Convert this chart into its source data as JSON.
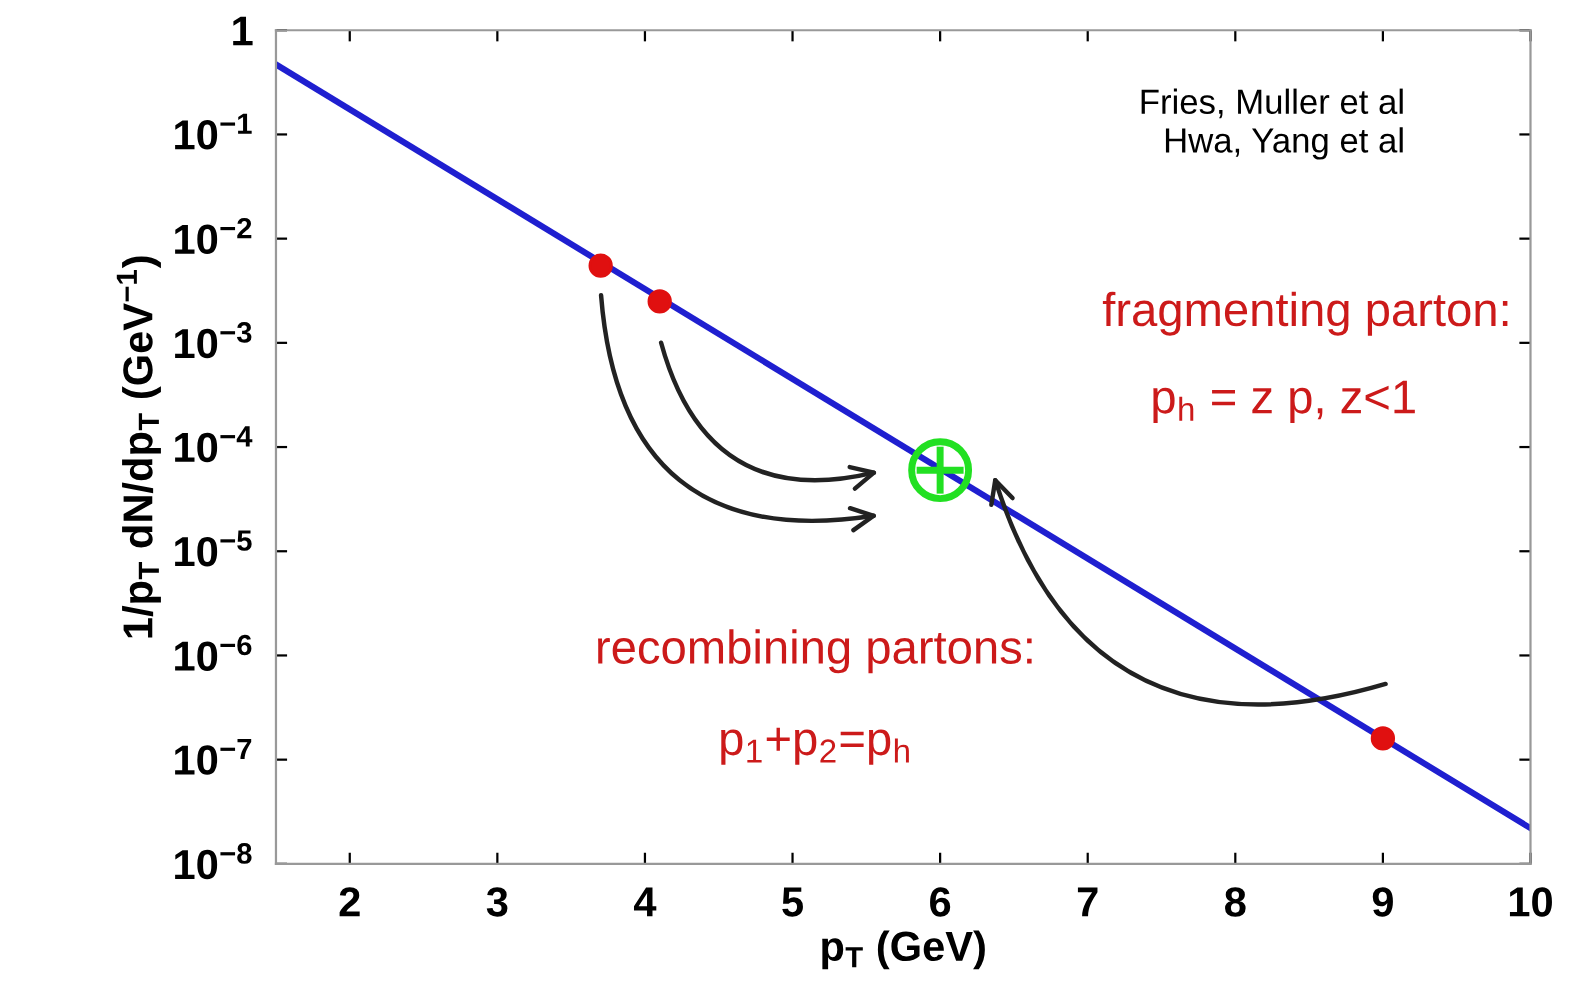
{
  "chart_data": {
    "type": "line",
    "xlabel": "p$_{T}$ (GeV)",
    "ylabel": "1/p$_{T}$ dN/dp$_{T}$ (GeV$^{−1}$)",
    "log": "y",
    "grid": false,
    "legend": false,
    "xlim": [
      1.5,
      10
    ],
    "xticks": [
      2,
      3,
      4,
      5,
      6,
      7,
      8,
      9,
      10
    ],
    "ylim": [
      1e-08,
      1
    ],
    "yticks": [
      {
        "value": 1,
        "label": "1"
      },
      {
        "value": 0.1,
        "label": "10$^{−1}$"
      },
      {
        "value": 0.01,
        "label": "10$^{−2}$"
      },
      {
        "value": 0.001,
        "label": "10$^{−3}$"
      },
      {
        "value": 0.0001,
        "label": "10$^{−4}$"
      },
      {
        "value": 1e-05,
        "label": "10$^{−5}$"
      },
      {
        "value": 1e-06,
        "label": "10$^{−6}$"
      },
      {
        "value": 1e-07,
        "label": "10$^{−7}$"
      },
      {
        "value": 1e-08,
        "label": "10$^{−8}$"
      }
    ],
    "series": [
      {
        "color": "#1f1fd0",
        "x": [
          1.5,
          10
        ],
        "values": [
          0.47,
          2.2e-08
        ],
        "marker": "none",
        "line_style": "solid"
      },
      {
        "type": "scatter",
        "color": "#e01010",
        "x": [
          3.7,
          4.1,
          9
        ],
        "values": [
          0.0055,
          0.0025,
          1.6e-07
        ],
        "marker": "circle"
      },
      {
        "type": "scatter",
        "color": "#22e022",
        "x": [
          6
        ],
        "values": [
          6e-05
        ],
        "marker": "circle"
      }
    ],
    "annotations": [
      "Fries, Muller et al\nHwa, Yang et al",
      "fragmenting parton:",
      "p$_{h}$ = z p, z<1",
      "recombining partons:",
      "p$_{1}$+p$_{2}$=p$_{h}$"
    ]
  }
}
